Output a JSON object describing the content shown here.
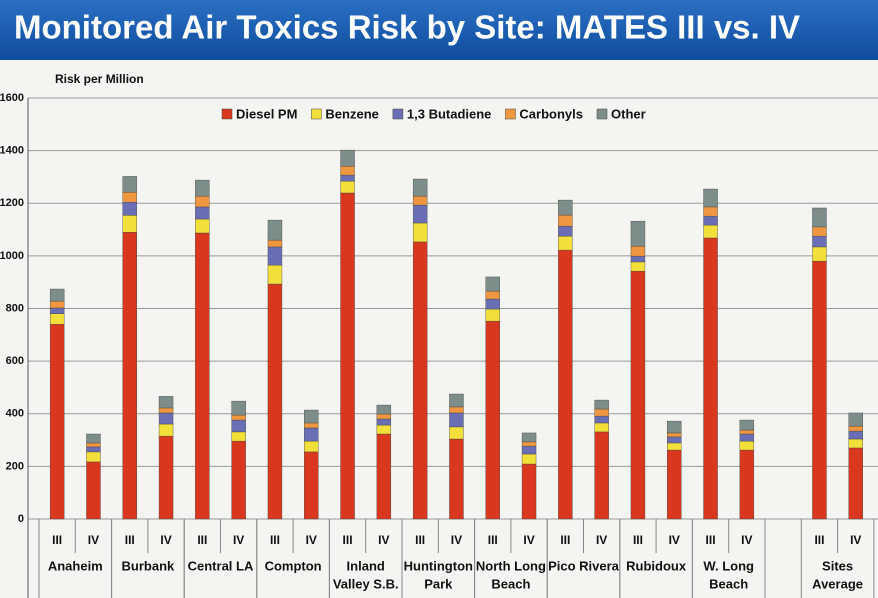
{
  "chart_data": {
    "type": "stacked-bar",
    "title": "Monitored Air Toxics Risk by Site: MATES III vs. IV",
    "y_label": "Risk per Million",
    "categories": [
      "III",
      "IV",
      "III",
      "IV",
      "III",
      "IV",
      "III",
      "IV",
      "III",
      "IV",
      "III",
      "IV",
      "III",
      "IV",
      "III",
      "IV",
      "III",
      "IV",
      "III",
      "IV",
      "III",
      "IV"
    ],
    "groups": [
      [
        "Anaheim"
      ],
      [
        "Burbank"
      ],
      [
        "Central LA"
      ],
      [
        "Compton"
      ],
      [
        "Inland",
        "Valley S.B."
      ],
      [
        "Huntington",
        "Park"
      ],
      [
        "North Long",
        "Beach"
      ],
      [
        "Pico Rivera"
      ],
      [
        "Rubidoux"
      ],
      [
        "W. Long",
        "Beach"
      ],
      [
        "Sites",
        "Average"
      ]
    ],
    "series": [
      {
        "name": "Diesel PM",
        "color": "#d9381e",
        "values": [
          740,
          217,
          1090,
          315,
          1087,
          296,
          893,
          255,
          1239,
          323,
          1053,
          304,
          752,
          209,
          1022,
          331,
          942,
          262,
          1068,
          262,
          980,
          270
        ]
      },
      {
        "name": "Benzene",
        "color": "#f3df3a",
        "values": [
          40,
          38,
          64,
          46,
          53,
          35,
          72,
          41,
          45,
          34,
          72,
          46,
          46,
          38,
          53,
          34,
          35,
          27,
          49,
          34,
          54,
          34
        ]
      },
      {
        "name": "1,3 Butadiene",
        "color": "#6a6fb5",
        "values": [
          22,
          19,
          50,
          42,
          46,
          45,
          69,
          50,
          23,
          23,
          68,
          53,
          38,
          30,
          38,
          26,
          22,
          23,
          34,
          27,
          41,
          30
        ]
      },
      {
        "name": "Carbonyls",
        "color": "#ef9640",
        "values": [
          26,
          15,
          38,
          19,
          41,
          19,
          26,
          19,
          34,
          19,
          34,
          23,
          30,
          16,
          42,
          27,
          38,
          15,
          35,
          15,
          35,
          19
        ]
      },
      {
        "name": "Other",
        "color": "#7d8d8a",
        "values": [
          46,
          34,
          60,
          44,
          61,
          53,
          76,
          49,
          61,
          34,
          65,
          49,
          54,
          34,
          57,
          34,
          95,
          45,
          68,
          38,
          72,
          50
        ]
      }
    ],
    "ylim": [
      0,
      1600
    ],
    "yticks": [
      0,
      200,
      400,
      600,
      800,
      1000,
      1200,
      1400,
      1600
    ],
    "grid": true
  }
}
